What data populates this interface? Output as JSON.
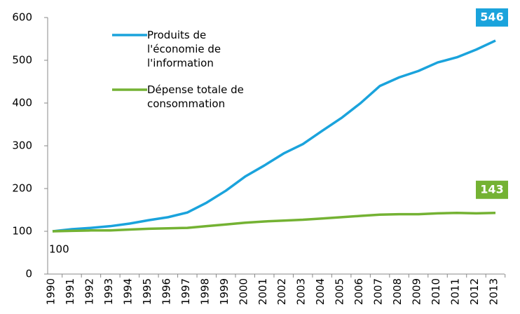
{
  "chart_data": {
    "type": "line",
    "categories": [
      "1990",
      "1991",
      "1992",
      "1993",
      "1994",
      "1995",
      "1996",
      "1997",
      "1998",
      "1999",
      "2000",
      "2001",
      "2002",
      "2003",
      "2004",
      "2005",
      "2006",
      "2007",
      "2008",
      "2009",
      "2010",
      "2011",
      "2012",
      "2013"
    ],
    "series": [
      {
        "name": "Produits de l'économie de l'information",
        "color": "#1aa3dc",
        "values": [
          100,
          105,
          108,
          112,
          118,
          126,
          133,
          144,
          167,
          195,
          228,
          254,
          282,
          304,
          335,
          365,
          400,
          440,
          460,
          475,
          495,
          507,
          525,
          546
        ],
        "value_labels": [
          "100",
          null,
          null,
          null,
          null,
          null,
          null,
          null,
          null,
          null,
          null,
          null,
          null,
          null,
          null,
          null,
          null,
          null,
          null,
          null,
          null,
          null,
          null,
          "546"
        ]
      },
      {
        "name": "Dépense totale de consommation",
        "color": "#74b233",
        "values": [
          100,
          101,
          102,
          102,
          104,
          106,
          107,
          108,
          112,
          116,
          120,
          123,
          125,
          127,
          130,
          133,
          136,
          139,
          140,
          140,
          142,
          143,
          142,
          143
        ],
        "value_labels": [
          null,
          null,
          null,
          null,
          null,
          null,
          null,
          null,
          null,
          null,
          null,
          null,
          null,
          null,
          null,
          null,
          null,
          null,
          null,
          null,
          null,
          null,
          null,
          "143"
        ]
      }
    ],
    "ylim": [
      0,
      600
    ],
    "yticks": [
      0,
      100,
      200,
      300,
      400,
      500,
      600
    ],
    "grid": false
  }
}
